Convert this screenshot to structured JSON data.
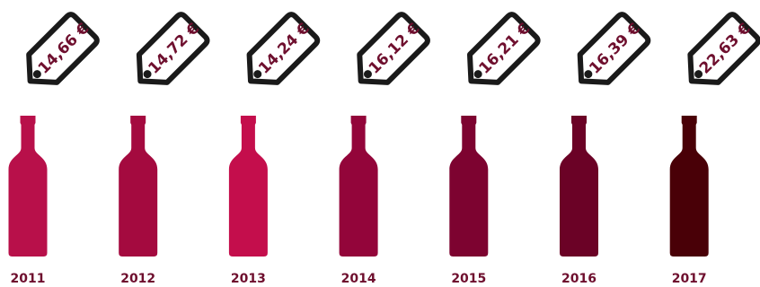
{
  "chart_data": {
    "type": "bar",
    "categories": [
      "2011",
      "2012",
      "2013",
      "2014",
      "2015",
      "2016",
      "2017"
    ],
    "values": [
      14.66,
      14.72,
      14.24,
      16.12,
      16.21,
      16.39,
      22.63
    ],
    "value_labels": [
      "14,66 €",
      "14,72 €",
      "14,24 €",
      "16,12 €",
      "16,21 €",
      "16,39 €",
      "22,63 €"
    ],
    "bottle_colors": [
      "#b8104a",
      "#a40a3f",
      "#c40e4c",
      "#93053a",
      "#7d0330",
      "#6b0226",
      "#490007"
    ],
    "label_color": "#6e0f2e",
    "tag_stroke": "#1a1a1a",
    "grid": false,
    "legend": "none"
  }
}
